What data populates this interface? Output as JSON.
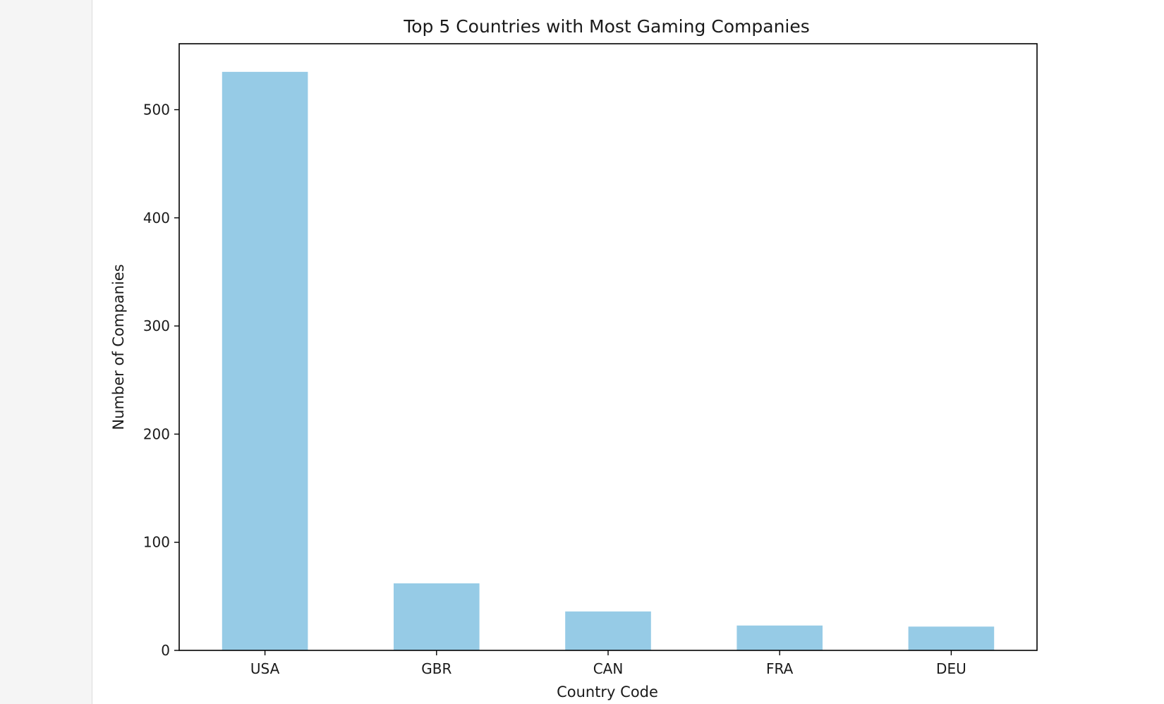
{
  "chart_data": {
    "type": "bar",
    "title": "Top 5 Countries with Most Gaming Companies",
    "xlabel": "Country Code",
    "ylabel": "Number of Companies",
    "categories": [
      "USA",
      "GBR",
      "CAN",
      "FRA",
      "DEU"
    ],
    "values": [
      535,
      62,
      36,
      23,
      22
    ],
    "ylim": [
      0,
      561
    ],
    "yticks": [
      0,
      100,
      200,
      300,
      400,
      500
    ],
    "bar_color": "#96cbe6",
    "grid": false,
    "legend": "none"
  }
}
